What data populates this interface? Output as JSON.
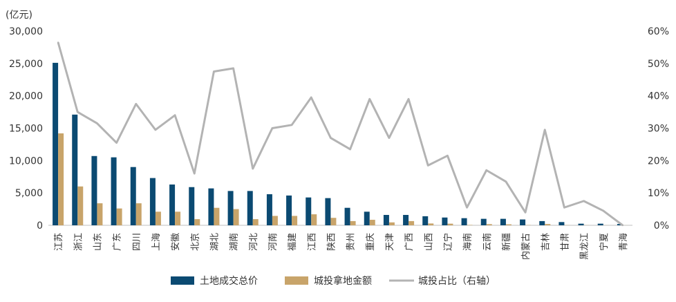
{
  "chart_data": {
    "type": "bar",
    "unit_label": "(亿元)",
    "categories": [
      "江苏",
      "浙江",
      "山东",
      "广东",
      "四川",
      "上海",
      "安徽",
      "北京",
      "湖北",
      "湖南",
      "河北",
      "河南",
      "福建",
      "江西",
      "陕西",
      "贵州",
      "重庆",
      "天津",
      "广西",
      "山西",
      "辽宁",
      "海南",
      "云南",
      "新疆",
      "内蒙古",
      "吉林",
      "甘肃",
      "黑龙江",
      "宁夏",
      "青海"
    ],
    "series": [
      {
        "name": "土地成交总价",
        "kind": "bar",
        "axis": "left",
        "color": "#0b4a72",
        "values": [
          25100,
          17100,
          10700,
          10500,
          9000,
          7300,
          6300,
          5900,
          5700,
          5300,
          5300,
          4800,
          4600,
          4300,
          4200,
          2700,
          2100,
          1600,
          1600,
          1400,
          1200,
          1100,
          1000,
          1000,
          900,
          650,
          500,
          250,
          250,
          200
        ]
      },
      {
        "name": "城投拿地金额",
        "kind": "bar",
        "axis": "left",
        "color": "#c8a46a",
        "values": [
          14200,
          6000,
          3400,
          2600,
          3400,
          2100,
          2100,
          950,
          2700,
          2500,
          950,
          1450,
          1450,
          1700,
          1150,
          650,
          850,
          450,
          650,
          280,
          250,
          60,
          180,
          150,
          40,
          200,
          30,
          20,
          12,
          5
        ]
      },
      {
        "name": "城投占比（右轴）",
        "kind": "line",
        "axis": "right",
        "color": "#b3b3b3",
        "values": [
          56.5,
          35.0,
          31.5,
          25.5,
          37.5,
          29.5,
          34.0,
          16.0,
          47.5,
          48.5,
          17.5,
          30.0,
          31.0,
          39.5,
          27.0,
          23.5,
          39.0,
          27.0,
          39.0,
          18.5,
          21.5,
          5.5,
          17.0,
          13.5,
          4.0,
          29.5,
          5.5,
          7.5,
          4.5,
          0.0
        ]
      }
    ],
    "y_left": {
      "min": 0,
      "max": 30000,
      "step": 5000,
      "tick_labels": [
        "0",
        "5,000",
        "10,000",
        "15,000",
        "20,000",
        "25,000",
        "30,000"
      ]
    },
    "y_right": {
      "min": 0,
      "max": 60,
      "step": 10,
      "tick_labels": [
        "0%",
        "10%",
        "20%",
        "30%",
        "40%",
        "50%",
        "60%"
      ]
    },
    "grid": false,
    "legend_position": "bottom"
  }
}
